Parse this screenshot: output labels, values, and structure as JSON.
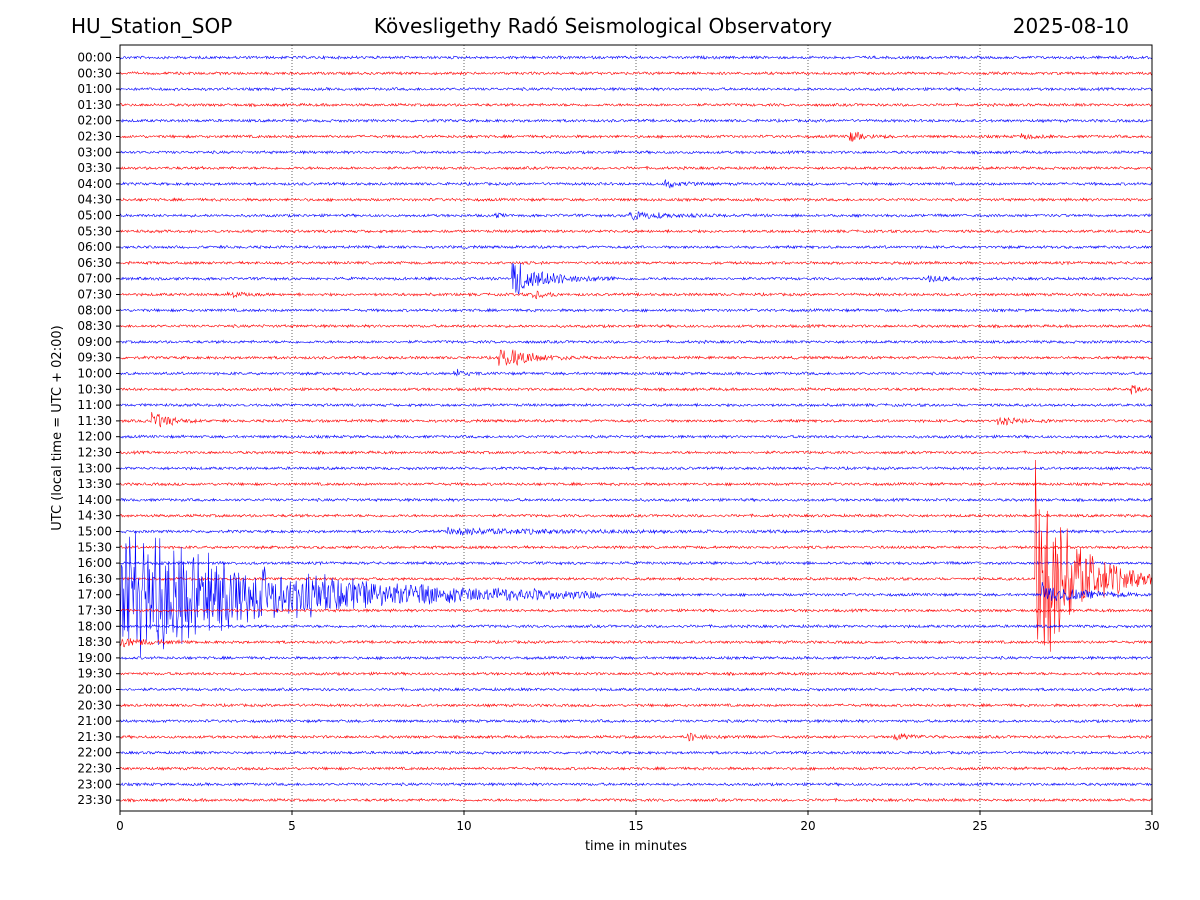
{
  "header": {
    "station": "HU_Station_SOP",
    "title": "Kövesligethy Radó Seismological Observatory",
    "date": "2025-08-10"
  },
  "chart_data": {
    "type": "line",
    "title": "Kövesligethy Radó Seismological Observatory",
    "xlabel": "time in minutes",
    "ylabel": "UTC (local time = UTC + 02:00)",
    "xlim": [
      0,
      30
    ],
    "xticks": [
      "0",
      "5",
      "10",
      "15",
      "20",
      "25",
      "30"
    ],
    "grid": "vertical dotted lines at x = 5, 10, 15, 20, 25",
    "row_colors": [
      "#0000ff",
      "#ff0000"
    ],
    "rows": [
      "00:00",
      "00:30",
      "01:00",
      "01:30",
      "02:00",
      "02:30",
      "03:00",
      "03:30",
      "04:00",
      "04:30",
      "05:00",
      "05:30",
      "06:00",
      "06:30",
      "07:00",
      "07:30",
      "08:00",
      "08:30",
      "09:00",
      "09:30",
      "10:00",
      "10:30",
      "11:00",
      "11:30",
      "12:00",
      "12:30",
      "13:00",
      "13:30",
      "14:00",
      "14:30",
      "15:00",
      "15:30",
      "16:00",
      "16:30",
      "17:00",
      "17:30",
      "18:00",
      "18:30",
      "19:00",
      "19:30",
      "20:00",
      "20:30",
      "21:00",
      "21:30",
      "22:00",
      "22:30",
      "23:00",
      "23:30"
    ],
    "events": [
      {
        "row": "02:30",
        "start_min": 21.2,
        "duration_min": 1.2,
        "amplitude": 0.45
      },
      {
        "row": "02:30",
        "start_min": 26.2,
        "duration_min": 0.9,
        "amplitude": 0.3
      },
      {
        "row": "04:00",
        "start_min": 15.8,
        "duration_min": 1.2,
        "amplitude": 0.35
      },
      {
        "row": "05:00",
        "start_min": 10.9,
        "duration_min": 0.4,
        "amplitude": 0.25
      },
      {
        "row": "05:00",
        "start_min": 14.8,
        "duration_min": 3.0,
        "amplitude": 0.3
      },
      {
        "row": "07:00",
        "start_min": 11.4,
        "duration_min": 3.0,
        "amplitude": 1.3
      },
      {
        "row": "07:00",
        "start_min": 23.5,
        "duration_min": 1.5,
        "amplitude": 0.25
      },
      {
        "row": "07:30",
        "start_min": 3.1,
        "duration_min": 1.0,
        "amplitude": 0.3
      },
      {
        "row": "07:30",
        "start_min": 12.0,
        "duration_min": 1.0,
        "amplitude": 0.35
      },
      {
        "row": "09:30",
        "start_min": 11.0,
        "duration_min": 2.5,
        "amplitude": 0.9
      },
      {
        "row": "10:00",
        "start_min": 9.7,
        "duration_min": 1.0,
        "amplitude": 0.3
      },
      {
        "row": "10:30",
        "start_min": 29.4,
        "duration_min": 0.6,
        "amplitude": 0.4
      },
      {
        "row": "11:30",
        "start_min": 0.9,
        "duration_min": 1.5,
        "amplitude": 0.7
      },
      {
        "row": "11:30",
        "start_min": 25.5,
        "duration_min": 1.8,
        "amplitude": 0.3
      },
      {
        "row": "15:00",
        "start_min": 9.5,
        "duration_min": 10.0,
        "amplitude": 0.22
      },
      {
        "row": "16:30",
        "start_min": 26.6,
        "duration_min": 3.4,
        "amplitude": 8.5
      },
      {
        "row": "17:00",
        "start_min": 0.0,
        "duration_min": 14.0,
        "amplitude": 5.0
      },
      {
        "row": "17:00",
        "start_min": 26.8,
        "duration_min": 3.2,
        "amplitude": 0.8
      },
      {
        "row": "18:30",
        "start_min": 0.0,
        "duration_min": 2.0,
        "amplitude": 0.4
      },
      {
        "row": "21:30",
        "start_min": 16.5,
        "duration_min": 1.5,
        "amplitude": 0.3
      },
      {
        "row": "21:30",
        "start_min": 22.5,
        "duration_min": 1.5,
        "amplitude": 0.3
      }
    ]
  }
}
